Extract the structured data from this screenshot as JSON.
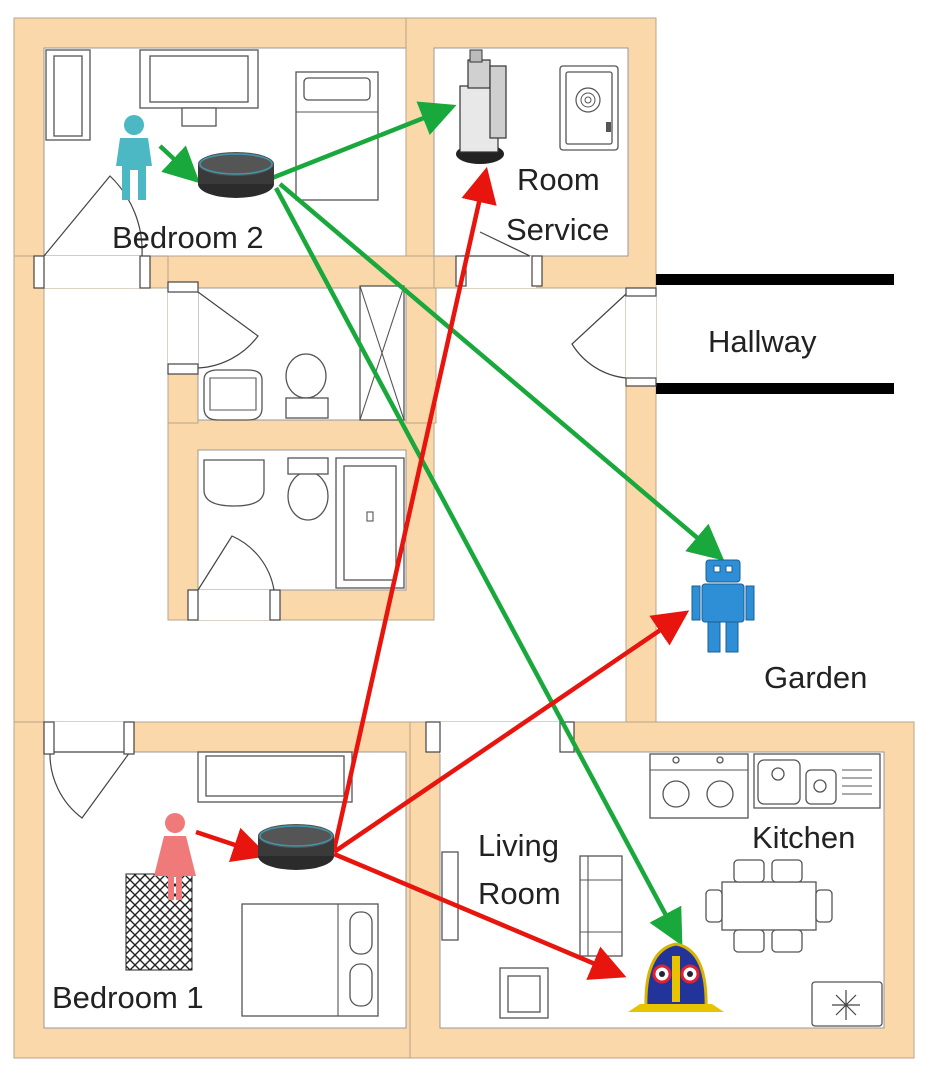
{
  "rooms": {
    "bedroom2": "Bedroom 2",
    "room_service_1": "Room",
    "room_service_2": "Service",
    "hallway": "Hallway",
    "garden": "Garden",
    "living_room_1": "Living",
    "living_room_2": "Room",
    "kitchen": "Kitchen",
    "bedroom1": "Bedroom 1"
  },
  "colors": {
    "wall": "#fbd8aa",
    "green_arrow": "#19a83c",
    "red_arrow": "#e8150e",
    "person_teal": "#4cb8c4",
    "person_pink": "#f07a7a",
    "robot_blue": "#2e8fd6"
  },
  "icons": [
    "person-icon",
    "smart-speaker-icon",
    "service-robot-icon",
    "safe-icon",
    "humanoid-robot-icon",
    "bell-robot-icon"
  ]
}
